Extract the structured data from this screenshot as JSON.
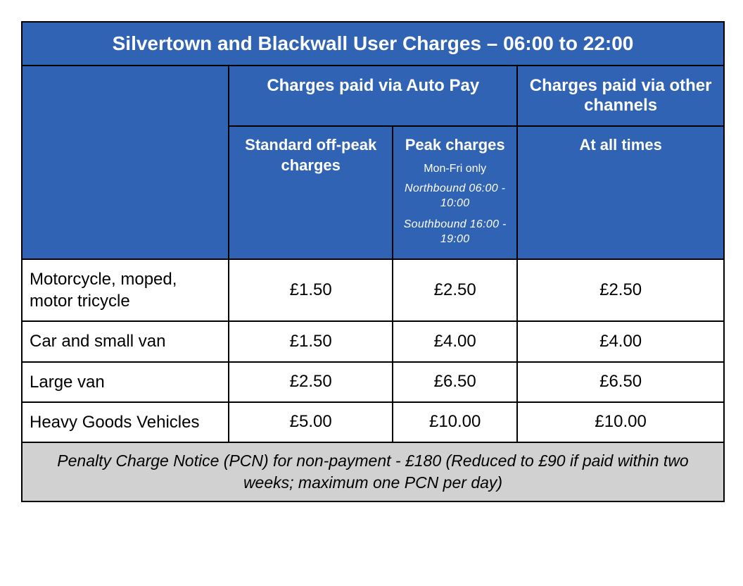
{
  "table": {
    "type": "table",
    "title": "Silvertown and Blackwall User Charges – 06:00 to 22:00",
    "colors": {
      "header_background": "#3063b4",
      "header_text": "#ffffff",
      "body_background": "#ffffff",
      "footer_background": "#d1d1d1",
      "border": "#000000"
    },
    "header_group_a": "Charges paid via Auto Pay",
    "header_group_b": "Charges paid via other channels",
    "sub_header_1_main": "Standard off-peak charges",
    "sub_header_2_main": "Peak charges",
    "sub_header_2_note1": "Mon-Fri only",
    "sub_header_2_note2": "Northbound 06:00 - 10:00",
    "sub_header_2_note3": "Southbound 16:00 - 19:00",
    "sub_header_3_main": "At all times",
    "rows": [
      {
        "label": "Motorcycle, moped, motor tricycle",
        "offpeak": "£1.50",
        "peak": "£2.50",
        "other": "£2.50"
      },
      {
        "label": "Car and small van",
        "offpeak": "£1.50",
        "peak": "£4.00",
        "other": "£4.00"
      },
      {
        "label": "Large van",
        "offpeak": "£2.50",
        "peak": "£6.50",
        "other": "£6.50"
      },
      {
        "label": "Heavy Goods Vehicles",
        "offpeak": "£5.00",
        "peak": "£10.00",
        "other": "£10.00"
      }
    ],
    "footer": "Penalty Charge Notice (PCN) for non-payment - £180 (Reduced to £90 if paid within two weeks; maximum one PCN per day)"
  }
}
